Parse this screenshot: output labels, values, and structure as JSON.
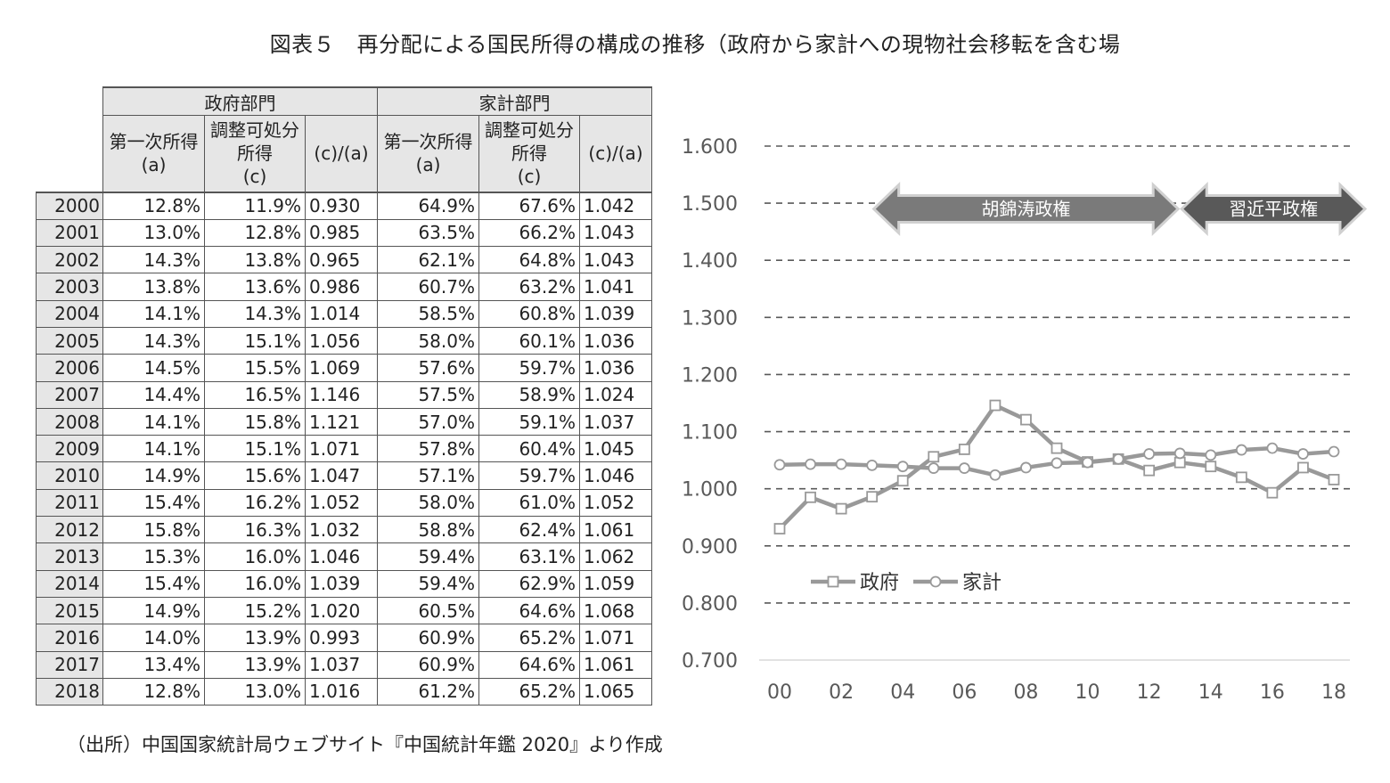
{
  "title": "図表５　再分配による国民所得の構成の推移（政府から家計への現物社会移転を含む場",
  "source": "（出所）中国国家統計局ウェブサイト『中国統計年鑑 2020』より作成",
  "table": {
    "group_headers": [
      "政府部門",
      "家計部門"
    ],
    "sub_headers": [
      "第一次所得\n(a)",
      "調整可処分\n所得\n(c)",
      "(c)/(a)",
      "第一次所得\n(a)",
      "調整可処分\n所得\n(c)",
      "(c)/(a)"
    ],
    "rows": [
      [
        "2000",
        "12.8%",
        "11.9%",
        "0.930",
        "64.9%",
        "67.6%",
        "1.042"
      ],
      [
        "2001",
        "13.0%",
        "12.8%",
        "0.985",
        "63.5%",
        "66.2%",
        "1.043"
      ],
      [
        "2002",
        "14.3%",
        "13.8%",
        "0.965",
        "62.1%",
        "64.8%",
        "1.043"
      ],
      [
        "2003",
        "13.8%",
        "13.6%",
        "0.986",
        "60.7%",
        "63.2%",
        "1.041"
      ],
      [
        "2004",
        "14.1%",
        "14.3%",
        "1.014",
        "58.5%",
        "60.8%",
        "1.039"
      ],
      [
        "2005",
        "14.3%",
        "15.1%",
        "1.056",
        "58.0%",
        "60.1%",
        "1.036"
      ],
      [
        "2006",
        "14.5%",
        "15.5%",
        "1.069",
        "57.6%",
        "59.7%",
        "1.036"
      ],
      [
        "2007",
        "14.4%",
        "16.5%",
        "1.146",
        "57.5%",
        "58.9%",
        "1.024"
      ],
      [
        "2008",
        "14.1%",
        "15.8%",
        "1.121",
        "57.0%",
        "59.1%",
        "1.037"
      ],
      [
        "2009",
        "14.1%",
        "15.1%",
        "1.071",
        "57.8%",
        "60.4%",
        "1.045"
      ],
      [
        "2010",
        "14.9%",
        "15.6%",
        "1.047",
        "57.1%",
        "59.7%",
        "1.046"
      ],
      [
        "2011",
        "15.4%",
        "16.2%",
        "1.052",
        "58.0%",
        "61.0%",
        "1.052"
      ],
      [
        "2012",
        "15.8%",
        "16.3%",
        "1.032",
        "58.8%",
        "62.4%",
        "1.061"
      ],
      [
        "2013",
        "15.3%",
        "16.0%",
        "1.046",
        "59.4%",
        "63.1%",
        "1.062"
      ],
      [
        "2014",
        "15.4%",
        "16.0%",
        "1.039",
        "59.4%",
        "62.9%",
        "1.059"
      ],
      [
        "2015",
        "14.9%",
        "15.2%",
        "1.020",
        "60.5%",
        "64.6%",
        "1.068"
      ],
      [
        "2016",
        "14.0%",
        "13.9%",
        "0.993",
        "60.9%",
        "65.2%",
        "1.071"
      ],
      [
        "2017",
        "13.4%",
        "13.9%",
        "1.037",
        "60.9%",
        "64.6%",
        "1.061"
      ],
      [
        "2018",
        "12.8%",
        "13.0%",
        "1.016",
        "61.2%",
        "65.2%",
        "1.065"
      ]
    ]
  },
  "chart_data": {
    "type": "line",
    "x": [
      2000,
      2001,
      2002,
      2003,
      2004,
      2005,
      2006,
      2007,
      2008,
      2009,
      2010,
      2011,
      2012,
      2013,
      2014,
      2015,
      2016,
      2017,
      2018
    ],
    "x_tick_labels": [
      "00",
      "02",
      "04",
      "06",
      "08",
      "10",
      "12",
      "14",
      "16",
      "18"
    ],
    "x_tick_values": [
      2000,
      2002,
      2004,
      2006,
      2008,
      2010,
      2012,
      2014,
      2016,
      2018
    ],
    "y_tick_labels": [
      "0.700",
      "0.800",
      "0.900",
      "1.000",
      "1.100",
      "1.200",
      "1.300",
      "1.400",
      "1.500",
      "1.600"
    ],
    "ylim": [
      0.7,
      1.6
    ],
    "grid": true,
    "legend_position": "lower-left",
    "series": [
      {
        "name": "政府",
        "marker": "square",
        "values": [
          0.93,
          0.985,
          0.965,
          0.986,
          1.014,
          1.056,
          1.069,
          1.146,
          1.121,
          1.071,
          1.047,
          1.052,
          1.032,
          1.046,
          1.039,
          1.02,
          0.993,
          1.037,
          1.016
        ]
      },
      {
        "name": "家計",
        "marker": "circle",
        "values": [
          1.042,
          1.043,
          1.043,
          1.041,
          1.039,
          1.036,
          1.036,
          1.024,
          1.037,
          1.045,
          1.046,
          1.052,
          1.061,
          1.062,
          1.059,
          1.068,
          1.071,
          1.061,
          1.065
        ]
      }
    ],
    "annotations": [
      {
        "label": "胡錦涛政権",
        "from": 2003,
        "to": 2013,
        "y": 1.49,
        "color": "#7a7a7a"
      },
      {
        "label": "習近平政権",
        "from": 2013,
        "to": 2018,
        "y": 1.49,
        "color": "#595959"
      }
    ],
    "colors": {
      "line": "#999999",
      "grid": "#595959",
      "axis": "#d9d9d9",
      "text": "#595959"
    }
  }
}
